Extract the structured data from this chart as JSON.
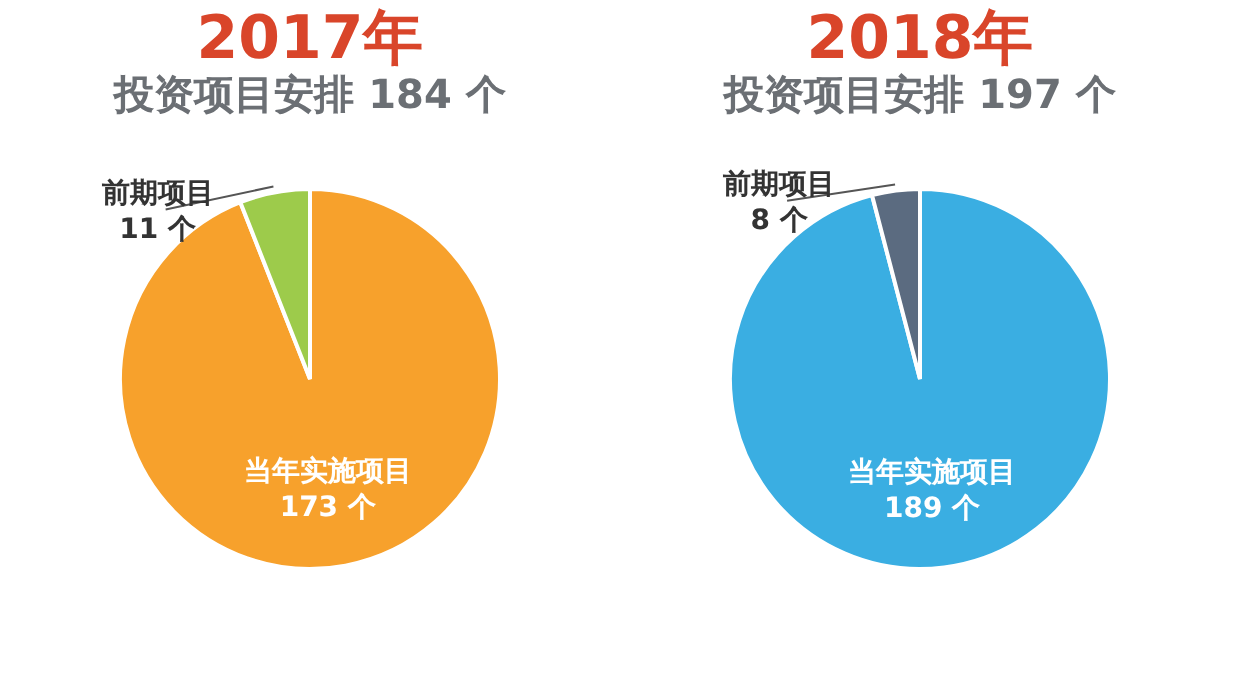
{
  "chart_data": [
    {
      "type": "pie",
      "title": "2017年",
      "subtitle": "投资项目安排 184 个",
      "categories": [
        "当年实施项目",
        "前期项目"
      ],
      "values": [
        173,
        11
      ],
      "colors": [
        "#f7a12c",
        "#9dcb4b"
      ],
      "value_labels": [
        "173 个",
        "11 个"
      ]
    },
    {
      "type": "pie",
      "title": "2018年",
      "subtitle": "投资项目安排 197 个",
      "categories": [
        "当年实施项目",
        "前期项目"
      ],
      "values": [
        189,
        8
      ],
      "colors": [
        "#3aaee2",
        "#5b6b80"
      ],
      "value_labels": [
        "189 个",
        "8 个"
      ]
    }
  ]
}
